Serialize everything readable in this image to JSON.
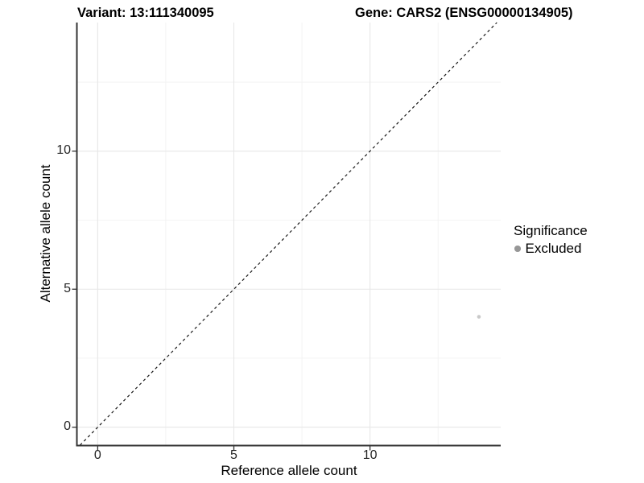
{
  "titles": {
    "variant": "Variant: 13:111340095",
    "gene": "Gene: CARS2 (ENSG00000134905)"
  },
  "legend": {
    "title": "Significance",
    "items": [
      {
        "label": "Excluded",
        "key_color": "#979797",
        "marker": "circle"
      }
    ]
  },
  "chart_data": {
    "type": "scatter",
    "title": "Variant: 13:111340095   Gene: CARS2 (ENSG00000134905)",
    "xlabel": "Reference allele count",
    "ylabel": "Alternative allele count",
    "xlim": [
      -0.75,
      14.8
    ],
    "ylim": [
      -0.65,
      14.66
    ],
    "x_ticks": [
      0,
      5,
      10
    ],
    "y_ticks": [
      0,
      5,
      10
    ],
    "x_minor_ticks": [
      2.5,
      7.5,
      12.5
    ],
    "y_minor_ticks": [
      2.5,
      7.5,
      12.5
    ],
    "grid": true,
    "legend_position": "right",
    "series": [
      {
        "name": "Excluded",
        "color": "#c9c9c9",
        "marker_radius": 2.3,
        "points": [
          {
            "x": 14,
            "y": 4
          }
        ]
      }
    ],
    "reference_line": {
      "type": "identity",
      "slope": 1,
      "intercept": 0,
      "style": "dashed",
      "color": "#1a1a1a"
    },
    "colors": {
      "axis": "#333333",
      "grid_major": "#e7e7e7",
      "grid_minor": "#f2f2f2",
      "tick_label": "#262626",
      "background": "#ffffff"
    }
  }
}
